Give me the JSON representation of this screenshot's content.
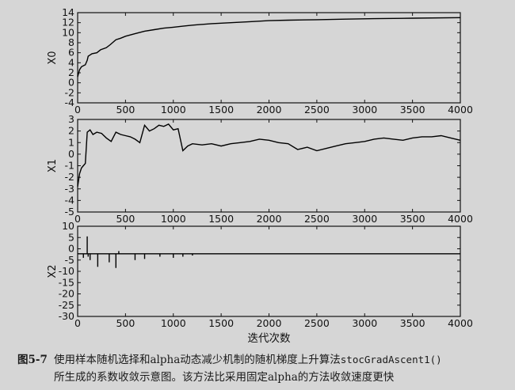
{
  "chart_data": [
    {
      "type": "line",
      "ylabel": "X0",
      "xlabel": "",
      "xlim": [
        0,
        4000
      ],
      "ylim": [
        -4,
        14
      ],
      "xticks": [
        0,
        500,
        1000,
        1500,
        2000,
        2500,
        3000,
        3500,
        4000
      ],
      "yticks": [
        -4,
        -2,
        0,
        2,
        4,
        6,
        8,
        10,
        12,
        14
      ],
      "series": [
        {
          "x": [
            0,
            20,
            40,
            60,
            80,
            100,
            110,
            150,
            200,
            240,
            300,
            340,
            400,
            450,
            500,
            600,
            700,
            800,
            900,
            1000,
            1100,
            1200,
            1400,
            1600,
            1800,
            2000,
            2200,
            2500,
            2800,
            3100,
            3500,
            4000
          ],
          "y": [
            1.2,
            2.6,
            3.2,
            3.4,
            3.6,
            4.5,
            5.3,
            5.8,
            6.0,
            6.6,
            7.0,
            7.6,
            8.6,
            8.9,
            9.3,
            9.8,
            10.3,
            10.6,
            10.9,
            11.1,
            11.3,
            11.5,
            11.8,
            12.0,
            12.2,
            12.4,
            12.5,
            12.6,
            12.7,
            12.8,
            12.9,
            13.0
          ]
        }
      ]
    },
    {
      "type": "line",
      "ylabel": "X1",
      "xlabel": "",
      "xlim": [
        0,
        4000
      ],
      "ylim": [
        -5,
        3
      ],
      "xticks": [
        0,
        500,
        1000,
        1500,
        2000,
        2500,
        3000,
        3500,
        4000
      ],
      "yticks": [
        -5,
        -4,
        -3,
        -2,
        -1,
        0,
        1,
        2,
        3
      ],
      "series": [
        {
          "x": [
            0,
            20,
            40,
            60,
            80,
            100,
            130,
            160,
            200,
            250,
            300,
            350,
            400,
            450,
            500,
            550,
            600,
            650,
            700,
            750,
            800,
            850,
            900,
            950,
            1000,
            1050,
            1100,
            1150,
            1200,
            1300,
            1400,
            1500,
            1600,
            1700,
            1800,
            1900,
            2000,
            2100,
            2200,
            2300,
            2400,
            2500,
            2600,
            2700,
            2800,
            2900,
            3000,
            3100,
            3200,
            3300,
            3400,
            3500,
            3600,
            3700,
            3800,
            3900,
            4000
          ],
          "y": [
            -2.8,
            -1.7,
            -1.2,
            -1.0,
            -0.8,
            1.9,
            2.1,
            1.7,
            1.9,
            1.8,
            1.4,
            1.1,
            1.9,
            1.7,
            1.6,
            1.5,
            1.3,
            1.0,
            2.5,
            2.0,
            2.2,
            2.5,
            2.4,
            2.6,
            2.1,
            2.2,
            0.3,
            0.7,
            0.9,
            0.8,
            0.9,
            0.7,
            0.9,
            1.0,
            1.1,
            1.3,
            1.2,
            1.0,
            0.9,
            0.4,
            0.6,
            0.3,
            0.5,
            0.7,
            0.9,
            1.0,
            1.1,
            1.3,
            1.4,
            1.3,
            1.2,
            1.4,
            1.5,
            1.5,
            1.6,
            1.4,
            1.2
          ]
        }
      ]
    },
    {
      "type": "line",
      "ylabel": "X2",
      "xlabel": "迭代次数",
      "xlim": [
        0,
        4000
      ],
      "ylim": [
        -30,
        10
      ],
      "xticks": [
        0,
        500,
        1000,
        1500,
        2000,
        2500,
        3000,
        3500,
        4000
      ],
      "yticks": [
        -30,
        -25,
        -20,
        -15,
        -10,
        -5,
        0,
        5,
        10
      ],
      "baseline": -2.2,
      "spikes": [
        {
          "x": 60,
          "y": -4
        },
        {
          "x": 100,
          "y": 5.5
        },
        {
          "x": 110,
          "y": -3.5
        },
        {
          "x": 130,
          "y": -5
        },
        {
          "x": 210,
          "y": -8
        },
        {
          "x": 330,
          "y": -6
        },
        {
          "x": 400,
          "y": -8.5
        },
        {
          "x": 430,
          "y": -1
        },
        {
          "x": 600,
          "y": -5
        },
        {
          "x": 700,
          "y": -4.5
        },
        {
          "x": 860,
          "y": -3.5
        },
        {
          "x": 1000,
          "y": -4
        },
        {
          "x": 1100,
          "y": -3.5
        },
        {
          "x": 1200,
          "y": -3
        }
      ]
    }
  ],
  "caption": {
    "fig_no": "图5-7",
    "line1_a": "使用样本随机选择和alpha动态减少机制的随机梯度上升算法",
    "line1_code": "stocGradAscent1()",
    "line2": "所生成的系数收敛示意图。该方法比采用固定alpha的方法收敛速度更快"
  }
}
